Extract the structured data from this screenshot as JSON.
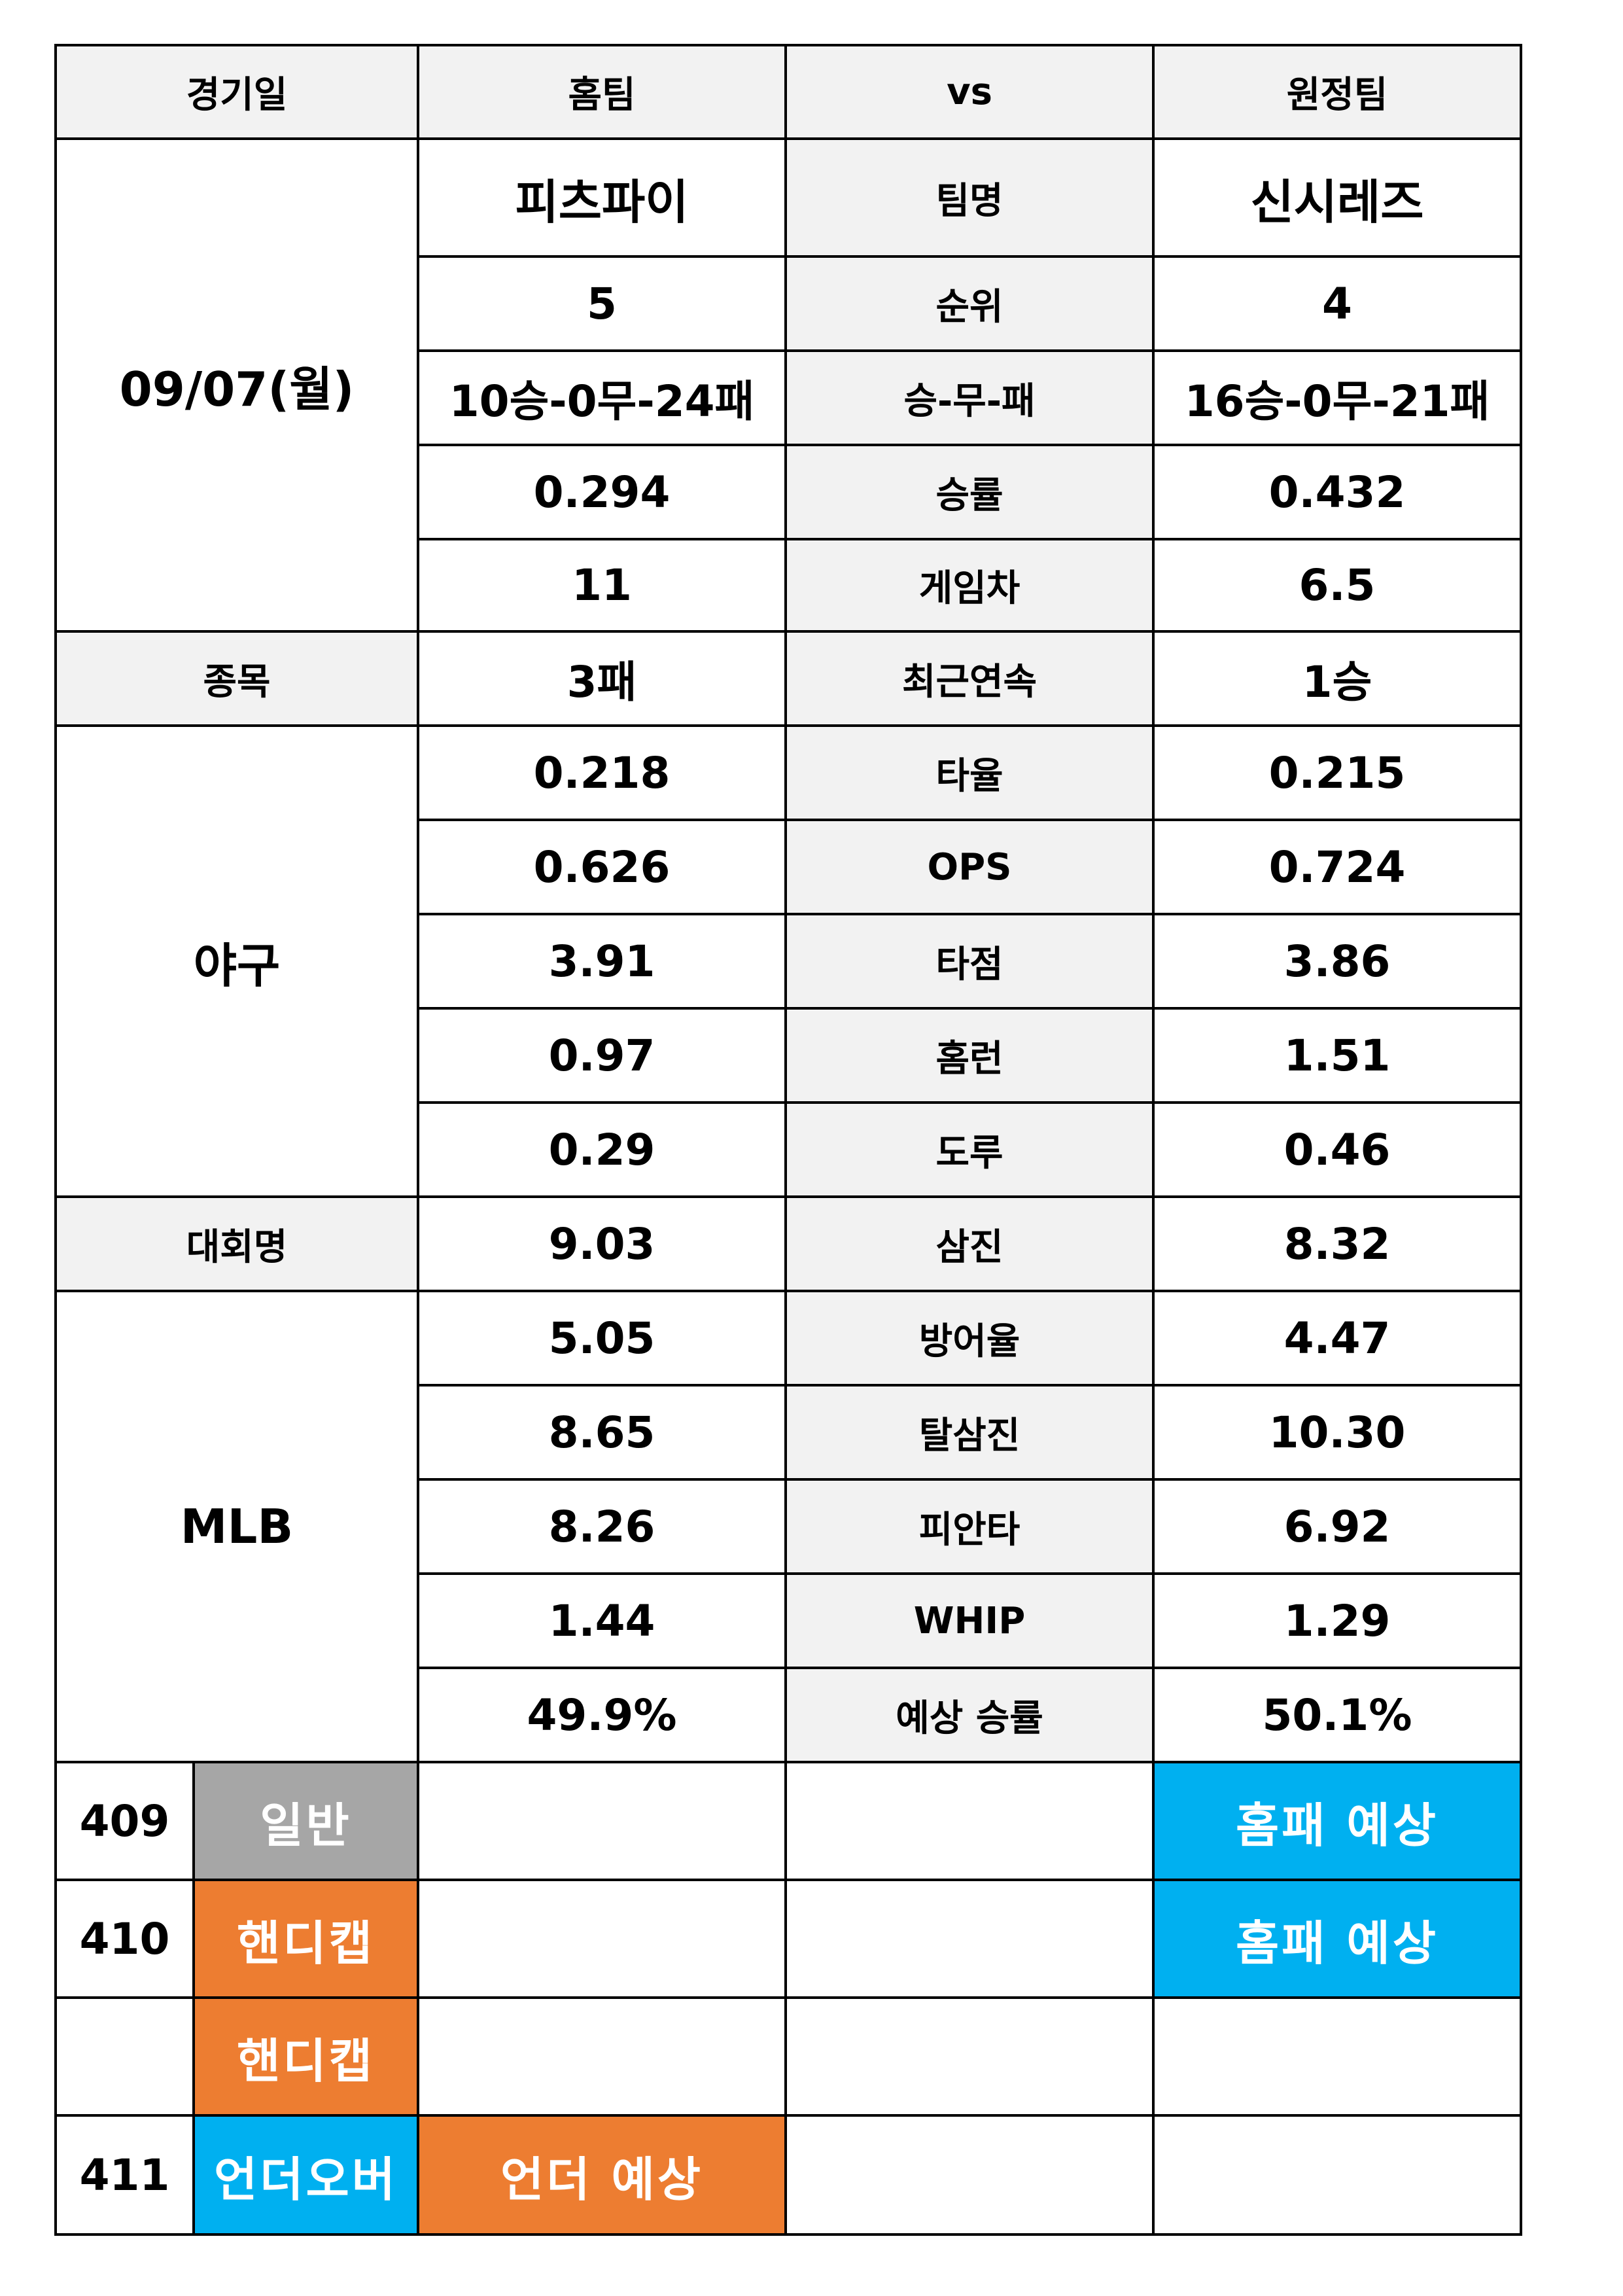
{
  "header": {
    "date": "경기일",
    "home": "홈팀",
    "vs": "vs",
    "away": "원정팀"
  },
  "left": {
    "date_value": "09/07(월)",
    "sport_label": "종목",
    "sport_value": "야구",
    "league_label": "대회명",
    "league_value": "MLB"
  },
  "stats": [
    {
      "label": "팀명",
      "home": "피츠파이",
      "away": "신시레즈"
    },
    {
      "label": "순위",
      "home": "5",
      "away": "4"
    },
    {
      "label": "승-무-패",
      "home": "10승-0무-24패",
      "away": "16승-0무-21패"
    },
    {
      "label": "승률",
      "home": "0.294",
      "away": "0.432"
    },
    {
      "label": "게임차",
      "home": "11",
      "away": "6.5"
    },
    {
      "label": "최근연속",
      "home": "3패",
      "away": "1승"
    },
    {
      "label": "타율",
      "home": "0.218",
      "away": "0.215"
    },
    {
      "label": "OPS",
      "home": "0.626",
      "away": "0.724"
    },
    {
      "label": "타점",
      "home": "3.91",
      "away": "3.86"
    },
    {
      "label": "홈런",
      "home": "0.97",
      "away": "1.51"
    },
    {
      "label": "도루",
      "home": "0.29",
      "away": "0.46"
    },
    {
      "label": "삼진",
      "home": "9.03",
      "away": "8.32"
    },
    {
      "label": "방어율",
      "home": "5.05",
      "away": "4.47"
    },
    {
      "label": "탈삼진",
      "home": "8.65",
      "away": "10.30"
    },
    {
      "label": "피안타",
      "home": "8.26",
      "away": "6.92"
    },
    {
      "label": "WHIP",
      "home": "1.44",
      "away": "1.29"
    },
    {
      "label": "예상 승률",
      "home": "49.9%",
      "away": "50.1%"
    }
  ],
  "picks": [
    {
      "number": "409",
      "type": "일반",
      "type_color": "#a6a6a6",
      "home": "",
      "home_color": "#ffffff",
      "away": "홈패 예상",
      "away_color": "#00b0f0"
    },
    {
      "number": "410",
      "type": "핸디캡",
      "type_color": "#ed7d31",
      "home": "",
      "home_color": "#ffffff",
      "away": "홈패 예상",
      "away_color": "#00b0f0"
    },
    {
      "number": "",
      "type": "핸디캡",
      "type_color": "#ed7d31",
      "home": "",
      "home_color": "#ffffff",
      "away": "",
      "away_color": "#ffffff"
    },
    {
      "number": "411",
      "type": "언더오버",
      "type_color": "#00b0f0",
      "home": "언더 예상",
      "home_color": "#ed7d31",
      "away": "",
      "away_color": "#ffffff"
    }
  ]
}
